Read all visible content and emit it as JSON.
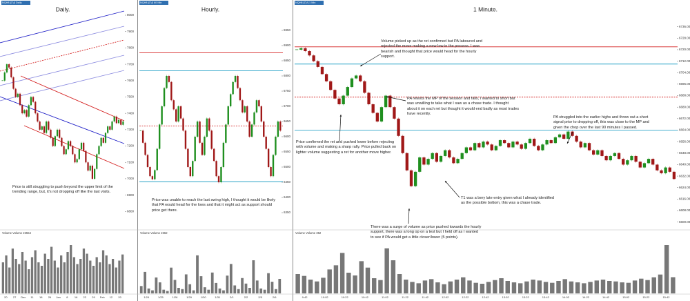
{
  "panels": [
    {
      "header": "NQH8 [CV] Daily",
      "title": "Daily.",
      "annotations": [
        "Price is still struggling to push beyond the upper limit of the trending range, but, it's not dropping off like the last visits."
      ],
      "up_color": "#1f8f1f",
      "down_color": "#a01818",
      "ylim": [
        6700,
        8000
      ],
      "yticks": [
        6800,
        6900,
        7000,
        7100,
        7200,
        7300,
        7400,
        7500,
        7600,
        7700,
        7800,
        7900,
        8000
      ],
      "closes": [
        7600,
        7650,
        7700,
        7680,
        7620,
        7550,
        7500,
        7520,
        7450,
        7400,
        7420,
        7380,
        7450,
        7500,
        7470,
        7400,
        7350,
        7300,
        7320,
        7280,
        7350,
        7300,
        7250,
        7200,
        7260,
        7300,
        7250,
        7200,
        7150,
        7180,
        7230,
        7200,
        7150,
        7100,
        7120,
        7180,
        7220,
        7170,
        7100,
        7050,
        7080,
        7000,
        7060,
        7150,
        7200,
        7250,
        7220,
        7280,
        7320,
        7300,
        7350,
        7380,
        7340,
        7360,
        7330,
        7350
      ],
      "levels": [],
      "volume_label": "Volume Volume 22554",
      "volume_ylim": [
        0,
        32000
      ],
      "volume": [
        18000,
        22000,
        15000,
        26000,
        20000,
        17000,
        24000,
        19000,
        14000,
        21000,
        25000,
        18000,
        16000,
        23000,
        20000,
        27000,
        19000,
        15000,
        22000,
        18000,
        24000,
        28000,
        21000,
        17000,
        20000,
        26000,
        23000,
        19000,
        16000,
        21000,
        18000,
        25000,
        22000,
        17000,
        20000,
        15000,
        19000,
        22554
      ],
      "x_labels": [
        "20",
        "27",
        "Dec",
        "11",
        "18",
        "26",
        "Jan",
        "8",
        "16",
        "22",
        "29",
        "Feb",
        "12",
        "20"
      ]
    },
    {
      "header": "NQH8 [CV] 60 Min",
      "title": "Hourly.",
      "annotations": [
        "Price was unable to reach the last swing high, I thought it would be likely that PA would head for the lows and that it might act as support should price get there."
      ],
      "up_color": "#1f8f1f",
      "down_color": "#a01818",
      "ylim": [
        6300,
        7000
      ],
      "yticks": [
        6350,
        6400,
        6450,
        6500,
        6550,
        6600,
        6650,
        6700,
        6750,
        6800,
        6850,
        6900,
        6950
      ],
      "closes": [
        6620,
        6580,
        6540,
        6500,
        6470,
        6460,
        6490,
        6560,
        6640,
        6700,
        6760,
        6800,
        6780,
        6720,
        6690,
        6650,
        6700,
        6660,
        6620,
        6560,
        6500,
        6470,
        6520,
        6600,
        6650,
        6580,
        6540,
        6600,
        6660,
        6620,
        6560,
        6520,
        6470,
        6450,
        6500,
        6580,
        6640,
        6700,
        6740,
        6780,
        6800,
        6760,
        6720,
        6680,
        6700,
        6650,
        6600,
        6640,
        6680,
        6720,
        6700,
        6650,
        6600,
        6560,
        6500,
        6470,
        6540,
        6600,
        6650,
        6620
      ],
      "levels": [
        {
          "value": 6876,
          "color": "#d42020",
          "dash": false
        },
        {
          "value": 6817,
          "color": "#2aa3c8",
          "dash": false
        },
        {
          "value": 6635,
          "color": "#d42020",
          "dash": true
        },
        {
          "value": 6452,
          "color": "#2aa3c8",
          "dash": false
        }
      ],
      "volume_label": "Volume Volume 2362",
      "volume_ylim": [
        0,
        9000
      ],
      "volume": [
        1200,
        3500,
        800,
        500,
        2600,
        1800,
        600,
        400,
        4200,
        2200,
        900,
        700,
        3100,
        1500,
        500,
        6200,
        2800,
        1000,
        600,
        3400,
        1700,
        800,
        500,
        2900,
        4800,
        1300,
        700,
        2500,
        1600,
        900,
        5400,
        2100,
        800,
        600,
        3300,
        1900,
        700,
        2362
      ],
      "x_labels": [
        "1/24",
        "1/25",
        "1/26",
        "1/29",
        "1/30",
        "1/31",
        "2/1",
        "2/2",
        "2/5",
        "2/6"
      ]
    },
    {
      "header": "NQH8 [CV] 1 Min",
      "title": "1 Minute.",
      "annotations": [
        "Volume picked up as the ret confirmed but PA laboured and rejected the move making a new low in the process. I was bearish and thought that price would head for the hourly support.",
        "PA retests the MP of the session and fails, I wanted to short but was unwilling to take what I saw as a chase trade. I thought about it on each ret but thought it would end badly as most trades have recently.",
        "Price confirmed the ret and pushed lower before rejecting with volume and making a sharp rally. Price pulled back on lighter volume suggesting a ret for another move higher.",
        "PA struggled into the earlier highs and threw out a short signal prior to dropping off, this was close to the MP and given the chop over the last 90 minutes I passed.",
        "T1 was a bery late entry given what I already identified as the possible bottom, this was a chase trade.",
        "There was a surge of volume as price pushed towards the hourly support, there was a long op on a test but I held off as I wanted to see if PA would get a little closer/lower (5 points)."
      ],
      "up_color": "#1f8f1f",
      "down_color": "#a01818",
      "ylim": [
        6596,
        6744
      ],
      "yticks": [
        {
          "value": 6600,
          "label": "6600.00"
        },
        {
          "value": 6608,
          "label": "6608.00"
        },
        {
          "value": 6616,
          "label": "6616.00"
        },
        {
          "value": 6624,
          "label": "6624.00"
        },
        {
          "value": 6632,
          "label": "6632.00"
        },
        {
          "value": 6640,
          "label": "6640.00"
        },
        {
          "value": 6648,
          "label": "6648.00"
        },
        {
          "value": 6656,
          "label": "6656.00"
        },
        {
          "value": 6664,
          "label": "6664.00"
        },
        {
          "value": 6672,
          "label": "6672.00"
        },
        {
          "value": 6680,
          "label": "6680.00"
        },
        {
          "value": 6688,
          "label": "6688.00"
        },
        {
          "value": 6696,
          "label": "6696.00"
        },
        {
          "value": 6704,
          "label": "6704.00"
        },
        {
          "value": 6712,
          "label": "6712.00"
        },
        {
          "value": 6720,
          "label": "6720.00"
        },
        {
          "value": 6728,
          "label": "6728.00"
        },
        {
          "value": 6736,
          "label": "6736.00"
        }
      ],
      "closes": [
        6720,
        6721,
        6719,
        6716,
        6712,
        6708,
        6703,
        6698,
        6692,
        6686,
        6682,
        6688,
        6694,
        6700,
        6702,
        6698,
        6690,
        6682,
        6676,
        6670,
        6680,
        6688,
        6680,
        6672,
        6660,
        6648,
        6636,
        6625,
        6635,
        6645,
        6640,
        6644,
        6648,
        6642,
        6646,
        6650,
        6645,
        6641,
        6644,
        6648,
        6652,
        6650,
        6655,
        6652,
        6656,
        6654,
        6650,
        6653,
        6657,
        6655,
        6652,
        6656,
        6654,
        6651,
        6655,
        6658,
        6653,
        6650,
        6654,
        6657,
        6655,
        6659,
        6661,
        6658,
        6663,
        6660,
        6656,
        6652,
        6655,
        6650,
        6647,
        6650,
        6646,
        6643,
        6646,
        6648,
        6644,
        6640,
        6643,
        6646,
        6642,
        6638,
        6641,
        6644,
        6640,
        6636,
        6634,
        6638,
        6635,
        6630
      ],
      "levels": [
        {
          "value": 6722,
          "color": "#d42020",
          "dash": false
        },
        {
          "value": 6710,
          "color": "#2aa3c8",
          "dash": false
        },
        {
          "value": 6687,
          "color": "#d42020",
          "dash": true
        },
        {
          "value": 6664,
          "color": "#2aa3c8",
          "dash": false
        }
      ],
      "volume_label": "Volume Volume 352",
      "volume_ylim": [
        0,
        1200
      ],
      "volume": [
        420,
        380,
        300,
        260,
        340,
        520,
        610,
        880,
        450,
        390,
        700,
        560,
        330,
        290,
        980,
        720,
        420,
        300,
        250,
        220,
        280,
        310,
        240,
        200,
        260,
        300,
        350,
        280,
        230,
        210,
        250,
        290,
        330,
        270,
        240,
        220,
        260,
        300,
        280,
        250,
        230,
        270,
        310,
        260,
        240,
        220,
        250,
        280,
        300,
        270,
        260,
        240,
        230,
        280,
        320,
        290,
        350,
        410,
        1050,
        352
      ],
      "x_labels": [
        "9:42",
        "10:02",
        "10:22",
        "10:42",
        "11:02",
        "11:22",
        "11:42",
        "12:02",
        "12:22",
        "12:42",
        "13:02",
        "13:22",
        "13:42",
        "14:02",
        "14:22",
        "14:42",
        "15:02",
        "15:22",
        "15:42"
      ]
    }
  ]
}
